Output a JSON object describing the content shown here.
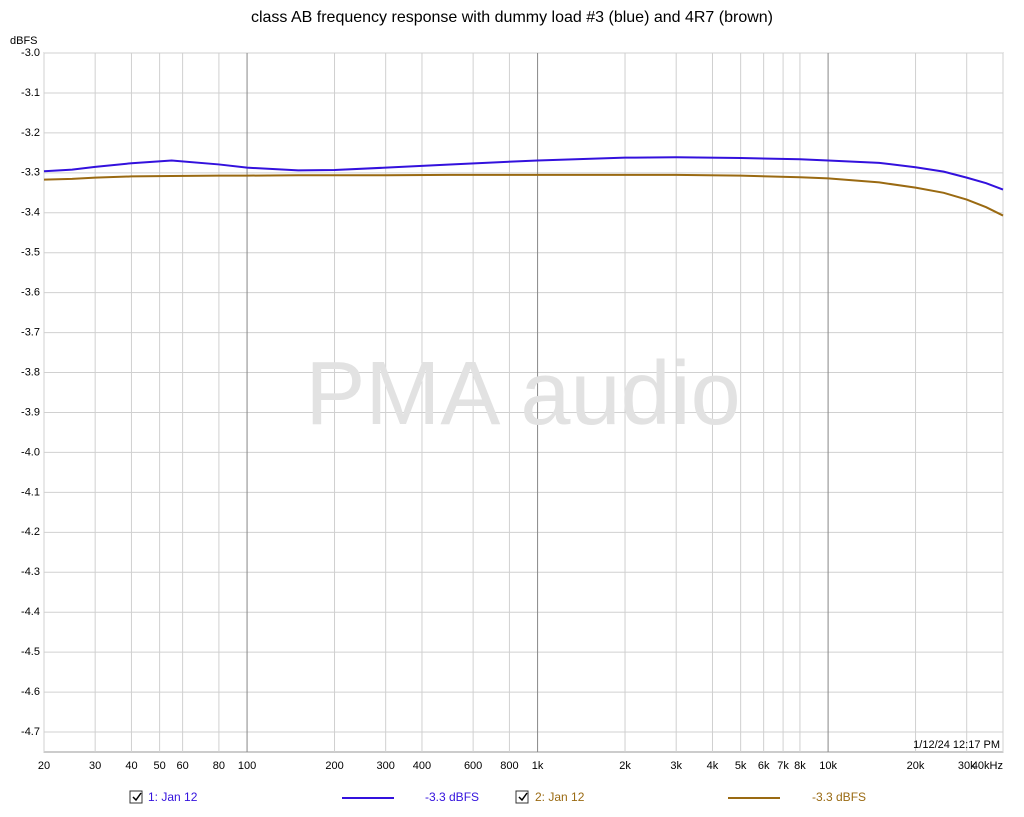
{
  "chart_data": {
    "type": "line",
    "title": "class AB frequency response with dummy load #3 (blue) and 4R7 (brown)",
    "y_unit": "dBFS",
    "watermark": "PMA audio",
    "timestamp": "1/12/24 12:17 PM",
    "x_log": true,
    "grid": true,
    "xlim": [
      20,
      40000
    ],
    "ylim": [
      -4.75,
      -3.0
    ],
    "xticks": [
      20,
      30,
      40,
      50,
      60,
      80,
      100,
      200,
      300,
      400,
      600,
      800,
      {
        "value": 1000,
        "label": "1k"
      },
      {
        "value": 2000,
        "label": "2k"
      },
      {
        "value": 3000,
        "label": "3k"
      },
      {
        "value": 4000,
        "label": "4k"
      },
      {
        "value": 5000,
        "label": "5k"
      },
      {
        "value": 6000,
        "label": "6k"
      },
      {
        "value": 7000,
        "label": "7k"
      },
      {
        "value": 8000,
        "label": "8k"
      },
      {
        "value": 10000,
        "label": "10k"
      },
      {
        "value": 20000,
        "label": "20k"
      },
      {
        "value": 30000,
        "label": "30k"
      },
      {
        "value": 40000,
        "label": "40kHz"
      }
    ],
    "yticks": [
      {
        "value": -3.0,
        "label": "-3.0"
      },
      -3.1,
      -3.2,
      -3.3,
      -3.4,
      -3.5,
      -3.6,
      -3.7,
      -3.8,
      -3.9,
      {
        "value": -4.0,
        "label": "-4.0"
      },
      -4.1,
      -4.2,
      -4.3,
      -4.4,
      -4.5,
      -4.6,
      -4.7
    ],
    "x": [
      20,
      25,
      30,
      40,
      55,
      80,
      100,
      150,
      200,
      300,
      500,
      1000,
      2000,
      3000,
      5000,
      8000,
      10000,
      15000,
      20000,
      25000,
      30000,
      35000,
      40000
    ],
    "series": [
      {
        "name": "1: Jan 12",
        "legend_value": "-3.3 dBFS",
        "color": "#3311dd",
        "values": [
          -3.296,
          -3.292,
          -3.285,
          -3.276,
          -3.269,
          -3.279,
          -3.287,
          -3.294,
          -3.293,
          -3.287,
          -3.279,
          -3.269,
          -3.262,
          -3.261,
          -3.263,
          -3.266,
          -3.269,
          -3.275,
          -3.286,
          -3.297,
          -3.312,
          -3.326,
          -3.342
        ]
      },
      {
        "name": "2: Jan 12",
        "legend_value": "-3.3 dBFS",
        "color": "#9a6a12",
        "values": [
          -3.317,
          -3.315,
          -3.312,
          -3.309,
          -3.308,
          -3.307,
          -3.307,
          -3.306,
          -3.306,
          -3.306,
          -3.305,
          -3.305,
          -3.305,
          -3.305,
          -3.307,
          -3.311,
          -3.314,
          -3.324,
          -3.337,
          -3.35,
          -3.367,
          -3.386,
          -3.407
        ]
      }
    ]
  }
}
